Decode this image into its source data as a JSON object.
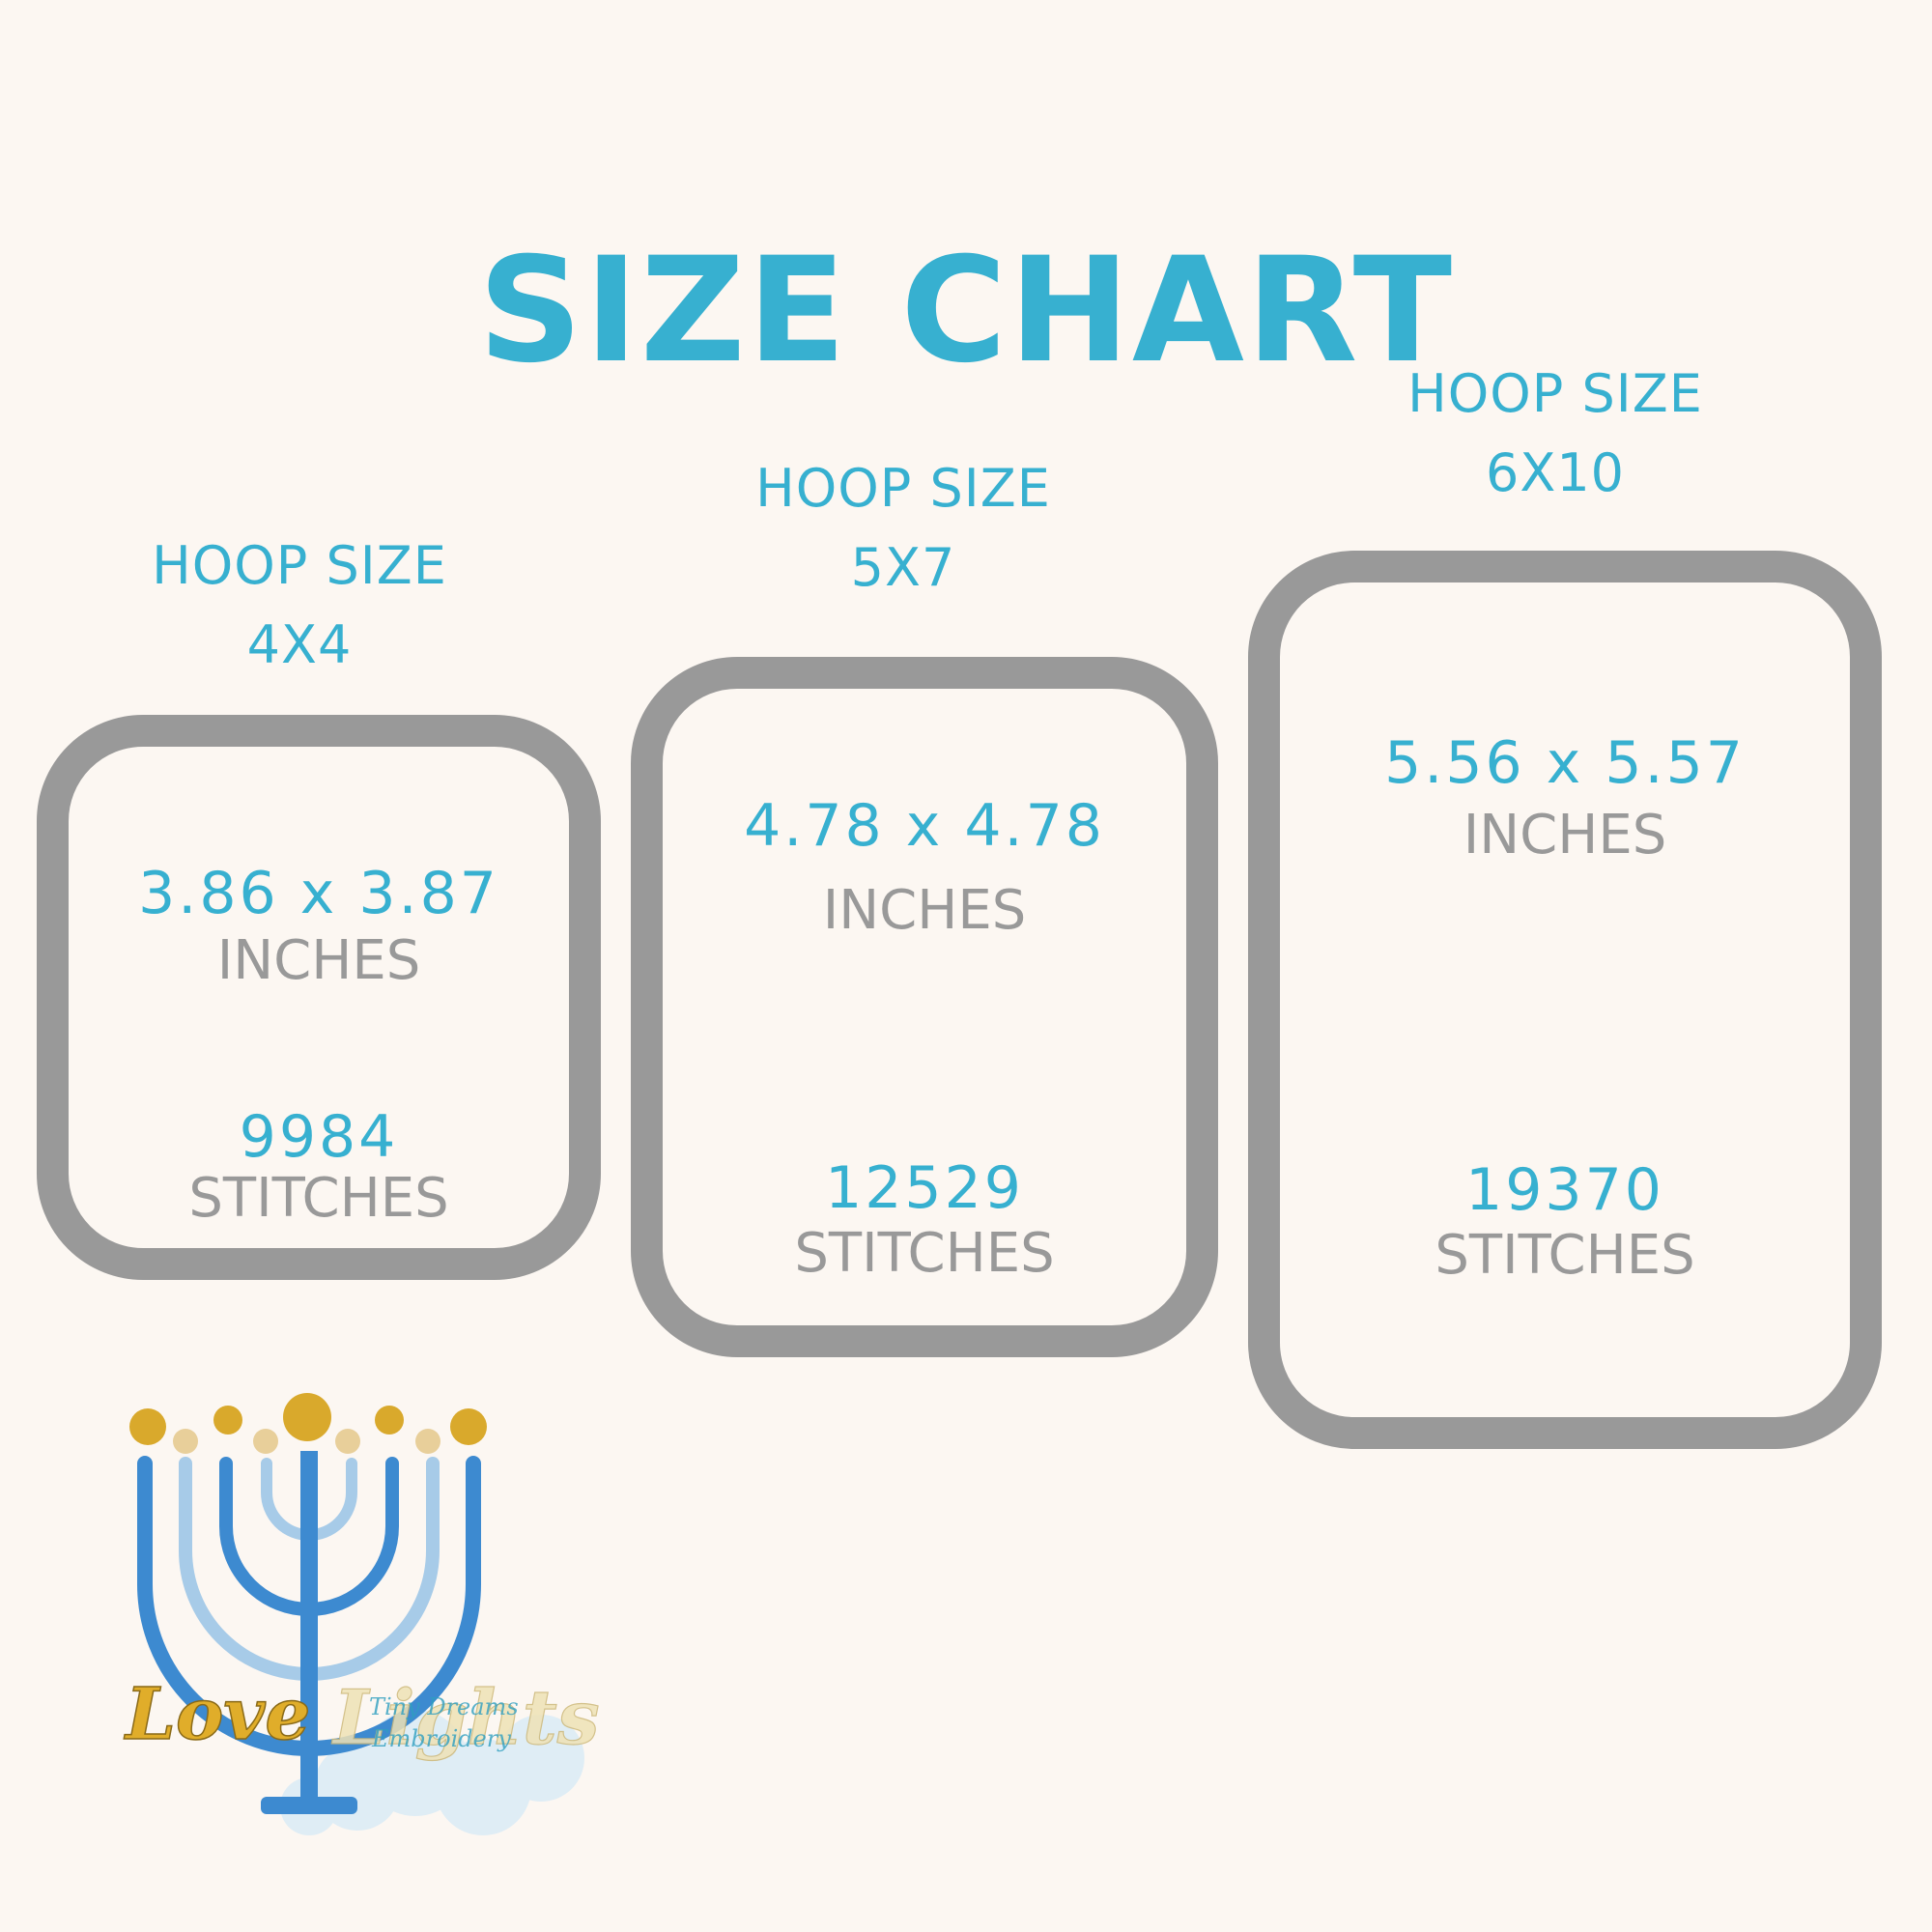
{
  "title": "SIZE CHART",
  "colors": {
    "accent": "#37b0d0",
    "gray": "#999999",
    "background": "#fcf7f2"
  },
  "hoops": [
    {
      "label": "HOOP SIZE",
      "size": "4X4",
      "dimensions": "3.86 x 3.87",
      "dimension_unit": "INCHES",
      "stitches": "9984",
      "stitch_unit": "STITCHES"
    },
    {
      "label": "HOOP SIZE",
      "size": "5X7",
      "dimensions": "4.78 x 4.78",
      "dimension_unit": "INCHES",
      "stitches": "12529",
      "stitch_unit": "STITCHES"
    },
    {
      "label": "HOOP SIZE",
      "size": "6X10",
      "dimensions": "5.56 x 5.57",
      "dimension_unit": "INCHES",
      "stitches": "19370",
      "stitch_unit": "STITCHES"
    }
  ],
  "logo": {
    "word_left": "Love",
    "word_right": "Lights",
    "watermark_line1": "Tiny Dreams",
    "watermark_line2": "Embroidery"
  }
}
